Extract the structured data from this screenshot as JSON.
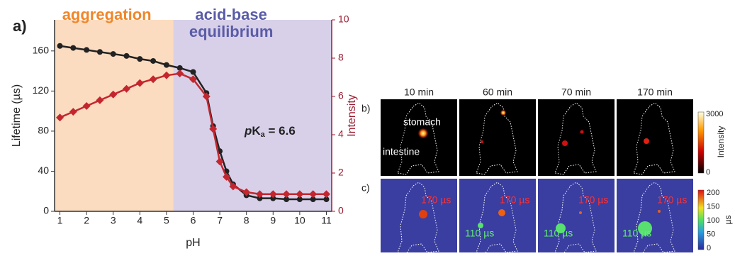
{
  "chart_data": {
    "type": "scatter",
    "panel_label": "a)",
    "x_label": "pH",
    "y_label": "Lifetime (µs)",
    "y2_label": "Intensity",
    "xlim": [
      0.8,
      11.2
    ],
    "xticks": [
      1,
      2,
      3,
      4,
      5,
      6,
      7,
      8,
      9,
      10,
      11
    ],
    "ylim": [
      0,
      191
    ],
    "yticks": [
      0,
      40,
      80,
      120,
      160
    ],
    "y2lim": [
      0,
      10
    ],
    "y2ticks": [
      0,
      2,
      4,
      6,
      8,
      10
    ],
    "regions": [
      {
        "lines": [
          "aggregation"
        ],
        "x": [
          0.8,
          5.25
        ],
        "color": "#fcdcc0",
        "text_color": "#f0862a"
      },
      {
        "lines": [
          "acid-base",
          "equilibrium"
        ],
        "x": [
          5.25,
          11.2
        ],
        "color": "#d8d0e9",
        "text_color": "#5a5ca8"
      }
    ],
    "annotation": [
      "p",
      "K",
      "a",
      " = 6.6"
    ],
    "series": [
      {
        "color": "#222222",
        "marker": "circle",
        "x": [
          1,
          1.5,
          2,
          2.5,
          3,
          3.5,
          4,
          4.5,
          5,
          5.5,
          6,
          6.5,
          6.75,
          7,
          7.25,
          7.5,
          8,
          8.5,
          9,
          9.5,
          10,
          10.5,
          11
        ],
        "values": [
          165,
          163,
          161,
          159,
          157,
          155,
          152,
          150,
          146,
          143,
          139,
          118,
          85,
          60,
          40,
          27,
          16,
          13,
          13,
          12,
          12,
          12,
          12
        ]
      },
      {
        "color": "#c4262e",
        "marker": "diamond",
        "axis": "y2",
        "x": [
          1,
          1.5,
          2,
          2.5,
          3,
          3.5,
          4,
          4.5,
          5,
          5.5,
          6,
          6.5,
          6.75,
          7,
          7.25,
          7.5,
          8,
          8.5,
          9,
          9.5,
          10,
          10.5,
          11
        ],
        "values": [
          4.9,
          5.2,
          5.5,
          5.8,
          6.1,
          6.4,
          6.7,
          6.9,
          7.1,
          7.2,
          6.9,
          6.0,
          4.3,
          2.6,
          1.8,
          1.3,
          1.0,
          0.9,
          0.9,
          0.9,
          0.9,
          0.9,
          0.9
        ]
      }
    ]
  },
  "panels": {
    "times": [
      "10 min",
      "60 min",
      "70 min",
      "170 min"
    ],
    "row_labels": [
      "b)",
      "c)"
    ],
    "organs": [
      "stomach",
      "intestine"
    ],
    "lifetimes": [
      "170 µs",
      "110 µs"
    ],
    "intensity_bar": {
      "title": "Intensity",
      "ticks": [
        "3000",
        "0"
      ]
    },
    "lifetime_bar": {
      "title": "µs",
      "ticks": [
        "200",
        "150",
        "100",
        "50",
        "0"
      ]
    }
  }
}
